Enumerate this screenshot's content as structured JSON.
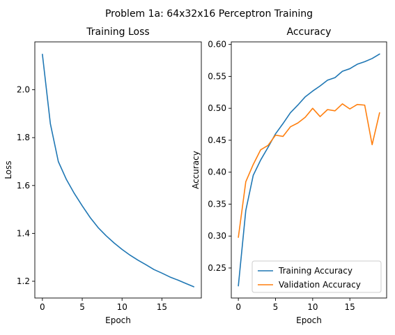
{
  "figure_title": "Problem 1a: 64x32x16 Perceptron Training",
  "chart_data": [
    {
      "type": "line",
      "title": "Training Loss",
      "xlabel": "Epoch",
      "ylabel": "Loss",
      "xlim": [
        -0.95,
        19.95
      ],
      "ylim": [
        1.13,
        2.2
      ],
      "xticks": [
        0,
        5,
        10,
        15
      ],
      "yticks": [
        1.2,
        1.4,
        1.6,
        1.8,
        2.0
      ],
      "ytick_labels": [
        "1.2",
        "1.4",
        "1.6",
        "1.8",
        "2.0"
      ],
      "grid": false,
      "legend": null,
      "x": [
        0,
        1,
        2,
        3,
        4,
        5,
        6,
        7,
        8,
        9,
        10,
        11,
        12,
        13,
        14,
        15,
        16,
        17,
        18,
        19
      ],
      "series": [
        {
          "color": "#1f77b4",
          "values": [
            2.148,
            1.858,
            1.7,
            1.626,
            1.567,
            1.515,
            1.466,
            1.424,
            1.39,
            1.36,
            1.333,
            1.309,
            1.288,
            1.269,
            1.249,
            1.234,
            1.218,
            1.205,
            1.191,
            1.177
          ]
        }
      ]
    },
    {
      "type": "line",
      "title": "Accuracy",
      "xlabel": "Epoch",
      "ylabel": "Accuracy",
      "xlim": [
        -0.95,
        19.95
      ],
      "ylim": [
        0.203,
        0.604
      ],
      "xticks": [
        0,
        5,
        10,
        15
      ],
      "yticks": [
        0.25,
        0.3,
        0.35,
        0.4,
        0.45,
        0.5,
        0.55,
        0.6
      ],
      "ytick_labels": [
        "0.25",
        "0.30",
        "0.35",
        "0.40",
        "0.45",
        "0.50",
        "0.55",
        "0.60"
      ],
      "grid": false,
      "legend": "lower-right",
      "x": [
        0,
        1,
        2,
        3,
        4,
        5,
        6,
        7,
        8,
        9,
        10,
        11,
        12,
        13,
        14,
        15,
        16,
        17,
        18,
        19
      ],
      "series": [
        {
          "name": "Training Accuracy",
          "color": "#1f77b4",
          "values": [
            0.222,
            0.34,
            0.395,
            0.419,
            0.439,
            0.46,
            0.476,
            0.493,
            0.505,
            0.518,
            0.527,
            0.535,
            0.544,
            0.548,
            0.558,
            0.562,
            0.569,
            0.573,
            0.578,
            0.585
          ]
        },
        {
          "name": "Validation Accuracy",
          "color": "#ff7f0e",
          "values": [
            0.298,
            0.385,
            0.412,
            0.435,
            0.442,
            0.458,
            0.456,
            0.471,
            0.477,
            0.486,
            0.5,
            0.487,
            0.498,
            0.496,
            0.507,
            0.499,
            0.506,
            0.505,
            0.443,
            0.493
          ]
        }
      ]
    }
  ]
}
